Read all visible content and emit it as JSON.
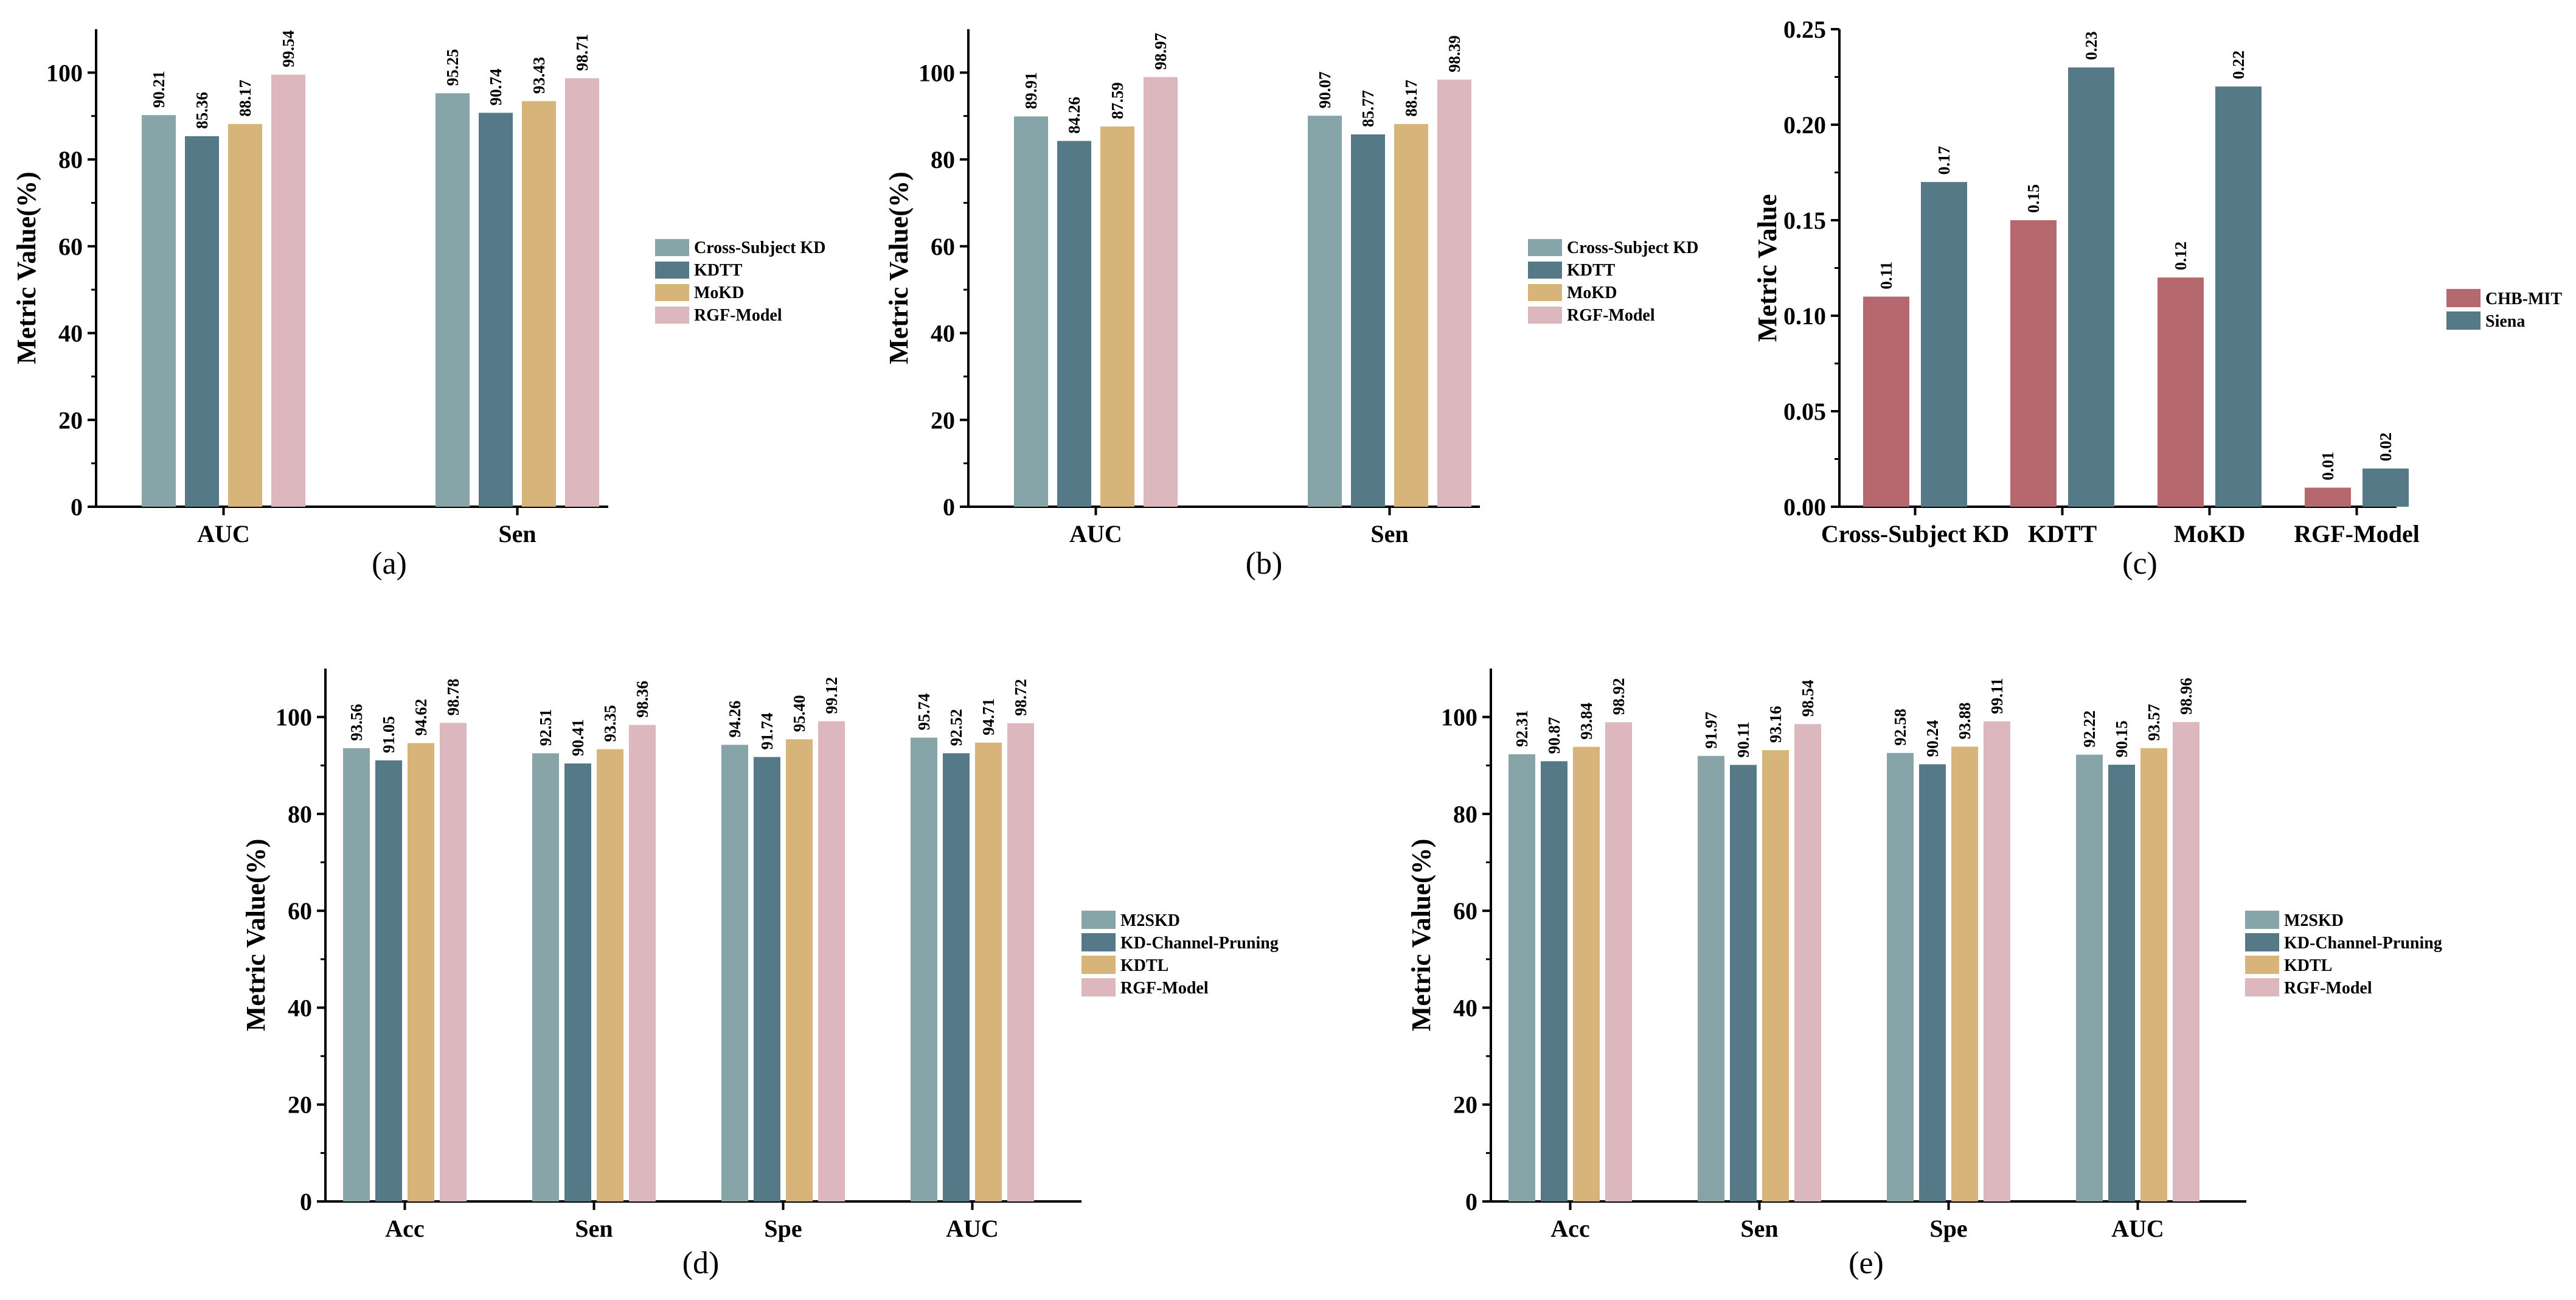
{
  "colors": {
    "teal": "#87a5a8",
    "slate": "#557987",
    "gold": "#d7b47a",
    "pink": "#dcb8be",
    "red": "#b5686d",
    "blue": "#557987"
  },
  "chart_data": [
    {
      "type": "bar",
      "panel": "(a)",
      "ylabel": "Metric Value(%)",
      "xlabel": "",
      "ylim": [
        0,
        110
      ],
      "yticks": [
        0,
        20,
        40,
        60,
        80,
        100
      ],
      "ytick_labels": [
        "0",
        "20",
        "40",
        "60",
        "80",
        "100"
      ],
      "categories": [
        "AUC",
        "Sen"
      ],
      "legend_position": "right",
      "series": [
        {
          "name": "Cross-Subject KD",
          "color_key": "teal",
          "values": [
            90.21,
            95.25
          ],
          "labels": [
            "90.21",
            "95.25"
          ]
        },
        {
          "name": "KDTT",
          "color_key": "slate",
          "values": [
            85.36,
            90.74
          ],
          "labels": [
            "85.36",
            "90.74"
          ]
        },
        {
          "name": "MoKD",
          "color_key": "gold",
          "values": [
            88.17,
            93.43
          ],
          "labels": [
            "88.17",
            "93.43"
          ]
        },
        {
          "name": "RGF-Model",
          "color_key": "pink",
          "values": [
            99.54,
            98.71
          ],
          "labels": [
            "99.54",
            "98.71"
          ]
        }
      ]
    },
    {
      "type": "bar",
      "panel": "(b)",
      "ylabel": "Metric Value(%)",
      "xlabel": "",
      "ylim": [
        0,
        110
      ],
      "yticks": [
        0,
        20,
        40,
        60,
        80,
        100
      ],
      "ytick_labels": [
        "0",
        "20",
        "40",
        "60",
        "80",
        "100"
      ],
      "categories": [
        "AUC",
        "Sen"
      ],
      "legend_position": "right",
      "series": [
        {
          "name": "Cross-Subject KD",
          "color_key": "teal",
          "values": [
            89.91,
            90.07
          ],
          "labels": [
            "89.91",
            "90.07"
          ]
        },
        {
          "name": "KDTT",
          "color_key": "slate",
          "values": [
            84.26,
            85.77
          ],
          "labels": [
            "84.26",
            "85.77"
          ]
        },
        {
          "name": "MoKD",
          "color_key": "gold",
          "values": [
            87.59,
            88.17
          ],
          "labels": [
            "87.59",
            "88.17"
          ]
        },
        {
          "name": "RGF-Model",
          "color_key": "pink",
          "values": [
            98.97,
            98.39
          ],
          "labels": [
            "98.97",
            "98.39"
          ]
        }
      ]
    },
    {
      "type": "bar",
      "panel": "(c)",
      "ylabel": "Metric Value",
      "xlabel": "",
      "ylim": [
        0,
        0.25
      ],
      "yticks": [
        0,
        0.05,
        0.1,
        0.15,
        0.2,
        0.25
      ],
      "ytick_labels": [
        "0.00",
        "0.05",
        "0.10",
        "0.15",
        "0.20",
        "0.25"
      ],
      "categories": [
        "Cross-Subject KD",
        "KDTT",
        "MoKD",
        "RGF-Model"
      ],
      "legend_position": "right",
      "series": [
        {
          "name": "CHB-MIT",
          "color_key": "red",
          "values": [
            0.11,
            0.15,
            0.12,
            0.01
          ],
          "labels": [
            "0.11",
            "0.15",
            "0.12",
            "0.01"
          ]
        },
        {
          "name": "Siena",
          "color_key": "blue",
          "values": [
            0.17,
            0.23,
            0.22,
            0.02
          ],
          "labels": [
            "0.17",
            "0.23",
            "0.22",
            "0.02"
          ]
        }
      ]
    },
    {
      "type": "bar",
      "panel": "(d)",
      "ylabel": "Metric Value(%)",
      "xlabel": "",
      "ylim": [
        0,
        110
      ],
      "yticks": [
        0,
        20,
        40,
        60,
        80,
        100
      ],
      "ytick_labels": [
        "0",
        "20",
        "40",
        "60",
        "80",
        "100"
      ],
      "categories": [
        "Acc",
        "Sen",
        "Spe",
        "AUC"
      ],
      "legend_position": "right",
      "series": [
        {
          "name": "M2SKD",
          "color_key": "teal",
          "values": [
            93.56,
            92.51,
            94.26,
            95.74
          ],
          "labels": [
            "93.56",
            "92.51",
            "94.26",
            "95.74"
          ]
        },
        {
          "name": "KD-Channel-Pruning",
          "color_key": "slate",
          "values": [
            91.05,
            90.41,
            91.74,
            92.52
          ],
          "labels": [
            "91.05",
            "90.41",
            "91.74",
            "92.52"
          ]
        },
        {
          "name": "KDTL",
          "color_key": "gold",
          "values": [
            94.62,
            93.35,
            95.4,
            94.71
          ],
          "labels": [
            "94.62",
            "93.35",
            "95.40",
            "94.71"
          ]
        },
        {
          "name": "RGF-Model",
          "color_key": "pink",
          "values": [
            98.78,
            98.36,
            99.12,
            98.72
          ],
          "labels": [
            "98.78",
            "98.36",
            "99.12",
            "98.72"
          ]
        }
      ]
    },
    {
      "type": "bar",
      "panel": "(e)",
      "ylabel": "Metric Value(%)",
      "xlabel": "",
      "ylim": [
        0,
        110
      ],
      "yticks": [
        0,
        20,
        40,
        60,
        80,
        100
      ],
      "ytick_labels": [
        "0",
        "20",
        "40",
        "60",
        "80",
        "100"
      ],
      "categories": [
        "Acc",
        "Sen",
        "Spe",
        "AUC"
      ],
      "legend_position": "right",
      "series": [
        {
          "name": "M2SKD",
          "color_key": "teal",
          "values": [
            92.31,
            91.97,
            92.58,
            92.22
          ],
          "labels": [
            "92.31",
            "91.97",
            "92.58",
            "92.22"
          ]
        },
        {
          "name": "KD-Channel-Pruning",
          "color_key": "slate",
          "values": [
            90.87,
            90.11,
            90.24,
            90.15
          ],
          "labels": [
            "90.87",
            "90.11",
            "90.24",
            "90.15"
          ]
        },
        {
          "name": "KDTL",
          "color_key": "gold",
          "values": [
            93.84,
            93.16,
            93.88,
            93.57
          ],
          "labels": [
            "93.84",
            "93.16",
            "93.88",
            "93.57"
          ]
        },
        {
          "name": "RGF-Model",
          "color_key": "pink",
          "values": [
            98.92,
            98.54,
            99.11,
            98.96
          ],
          "labels": [
            "98.92",
            "98.54",
            "99.11",
            "98.96"
          ]
        }
      ]
    }
  ]
}
